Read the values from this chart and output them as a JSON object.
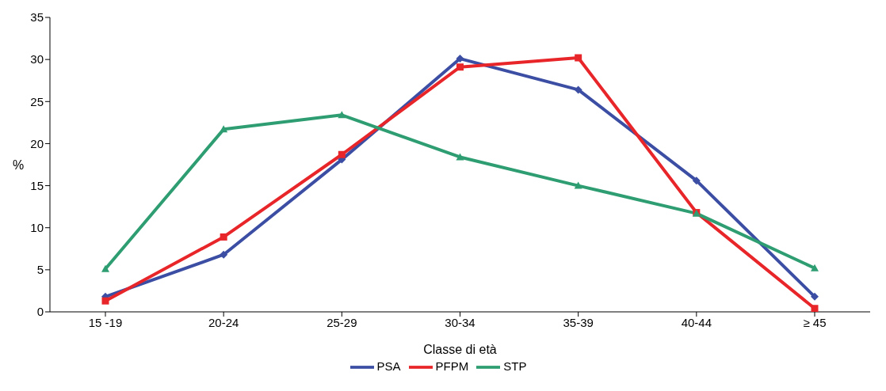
{
  "chart_data": {
    "type": "line",
    "xlabel": "Classe di età",
    "ylabel": "%",
    "categories": [
      "15 -19",
      "20-24",
      "25-29",
      "30-34",
      "35-39",
      "40-44",
      "≥ 45"
    ],
    "series": [
      {
        "name": "PSA",
        "color": "#3b4ea3",
        "marker": "diamond",
        "values": [
          1.8,
          6.8,
          18.1,
          30.1,
          26.4,
          15.6,
          1.8
        ]
      },
      {
        "name": "PFPM",
        "color": "#e8262a",
        "marker": "square",
        "values": [
          1.3,
          8.9,
          18.7,
          29.1,
          30.2,
          11.8,
          0.4
        ]
      },
      {
        "name": "STP",
        "color": "#2e9e72",
        "marker": "triangle",
        "values": [
          5.1,
          21.7,
          23.4,
          18.4,
          15.0,
          11.7,
          5.2
        ]
      }
    ],
    "ylim": [
      0,
      35
    ],
    "yticks": [
      0,
      5,
      10,
      15,
      20,
      25,
      30,
      35
    ],
    "grid": false,
    "legend": "bottom"
  }
}
